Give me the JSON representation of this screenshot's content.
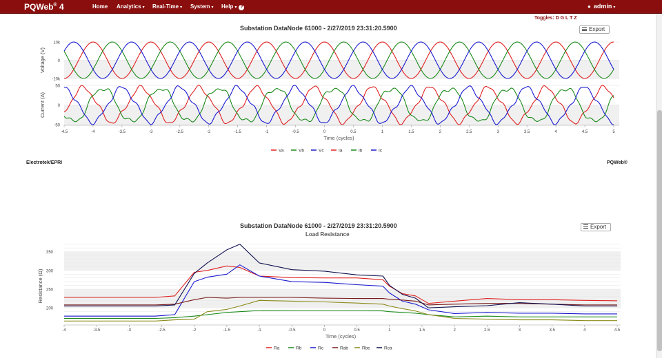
{
  "navbar": {
    "brand": "PQWeb",
    "brand_sup": "®",
    "brand_version": " 4",
    "items": [
      {
        "label": "Home"
      },
      {
        "label": "Analytics"
      },
      {
        "label": "Real-Time"
      },
      {
        "label": "System"
      },
      {
        "label": "Help"
      }
    ],
    "help_badge": "?",
    "user_icon": "person-icon",
    "user": "admin",
    "color": "#8a0e0e"
  },
  "toggles": "Toggles: D G L T Z",
  "waveform_panel": {
    "title": "Substation DataNode 61000 - 2/27/2019 23:31:20.5900",
    "export_label": "Export"
  },
  "resistance_panel": {
    "title": "Substation DataNode 61000 - 2/27/2019 23:31:20.5900",
    "subtitle": "Load Resistance",
    "export_label": "Export"
  },
  "footer": {
    "left": "Electrotek/EPRI",
    "right": "PQWeb®"
  },
  "chart_data": [
    {
      "type": "line",
      "title": "",
      "xlabel": "Time (cycles)",
      "ylabel": "Voltage (V)",
      "xlim": [
        -4.5,
        5
      ],
      "ylim": [
        -10000,
        10000
      ],
      "x_ticks": [
        "-4.5",
        "-4",
        "-3.5",
        "-3",
        "-2.5",
        "-2",
        "-1.5",
        "-1",
        "-0.5",
        "0",
        "0.5",
        "1",
        "1.5",
        "2",
        "2.5",
        "3",
        "3.5",
        "4",
        "4.5",
        "5"
      ],
      "y_ticks": [
        "10k",
        "0",
        "-10k"
      ],
      "grid": true,
      "series": [
        {
          "name": "Va",
          "color": "#e02020",
          "amplitude": 10000,
          "phase_deg": 90
        },
        {
          "name": "Vb",
          "color": "#1a8a1a",
          "amplitude": 10000,
          "phase_deg": -30
        },
        {
          "name": "Vc",
          "color": "#1a1ad0",
          "amplitude": 10000,
          "phase_deg": -150
        }
      ]
    },
    {
      "type": "line",
      "title": "",
      "xlabel": "Time (cycles)",
      "ylabel": "Current (A)",
      "xlim": [
        -4.5,
        5
      ],
      "ylim": [
        -50,
        50
      ],
      "y_ticks": [
        "50",
        "0",
        "-50"
      ],
      "grid": true,
      "series": [
        {
          "name": "Ia",
          "color": "#e02020",
          "amplitude": 40,
          "phase_deg": 150
        },
        {
          "name": "Ib",
          "color": "#1a8a1a",
          "amplitude": 40,
          "phase_deg": 30
        },
        {
          "name": "Ic",
          "color": "#1a1ad0",
          "amplitude": 40,
          "phase_deg": -90
        }
      ],
      "legend": {
        "placement": "bottom",
        "entries": [
          "Va",
          "Vb",
          "Vc",
          "Ia",
          "Ib",
          "Ic"
        ]
      }
    },
    {
      "type": "line",
      "title": "Substation DataNode 61000 - 2/27/2019 23:31:20.5900",
      "subtitle": "Load Resistance",
      "xlabel": "Time (cycles)",
      "ylabel": "Resistance (Ω)",
      "xlim": [
        -4,
        4.5
      ],
      "ylim": [
        160,
        375
      ],
      "x_ticks": [
        "-4",
        "-3.5",
        "-3",
        "-2.5",
        "-2",
        "-1.5",
        "-1",
        "-0.5",
        "0",
        "0.5",
        "1",
        "1.5",
        "2",
        "2.5",
        "3",
        "3.5",
        "4",
        "4.5"
      ],
      "y_ticks": [
        "350",
        "300",
        "250",
        "200"
      ],
      "grid": true,
      "legend": {
        "placement": "bottom"
      },
      "x": [
        -4,
        -2.6,
        -2.3,
        -2.0,
        -1.8,
        -1.5,
        -1.3,
        -1.0,
        -0.5,
        0,
        0.5,
        0.9,
        1.0,
        1.2,
        1.4,
        1.6,
        2.0,
        2.5,
        3.0,
        3.5,
        4.0,
        4.5
      ],
      "series": [
        {
          "name": "Ra",
          "color": "#e02020",
          "values": [
            228,
            228,
            232,
            295,
            300,
            312,
            308,
            285,
            281,
            280,
            280,
            275,
            258,
            238,
            232,
            212,
            218,
            225,
            222,
            222,
            220,
            219
          ]
        },
        {
          "name": "Rb",
          "color": "#1a8a1a",
          "values": [
            172,
            172,
            174,
            178,
            182,
            188,
            190,
            193,
            194,
            194,
            194,
            192,
            190,
            188,
            186,
            182,
            176,
            178,
            176,
            176,
            176,
            176
          ]
        },
        {
          "name": "Rc",
          "color": "#1a1ad0",
          "values": [
            178,
            178,
            182,
            270,
            282,
            290,
            315,
            285,
            270,
            268,
            262,
            258,
            240,
            218,
            210,
            195,
            185,
            188,
            186,
            186,
            184,
            184
          ]
        },
        {
          "name": "Rab",
          "color": "#7a1a1a",
          "values": [
            208,
            208,
            210,
            222,
            228,
            226,
            228,
            228,
            228,
            226,
            225,
            225,
            223,
            221,
            218,
            208,
            210,
            212,
            212,
            210,
            208,
            208
          ]
        },
        {
          "name": "Rbc",
          "color": "#8a8a1a",
          "values": [
            165,
            165,
            168,
            170,
            190,
            196,
            205,
            220,
            218,
            216,
            213,
            210,
            205,
            198,
            192,
            182,
            172,
            170,
            168,
            168,
            166,
            166
          ]
        },
        {
          "name": "Rca",
          "color": "#101050",
          "values": [
            205,
            205,
            208,
            292,
            320,
            355,
            370,
            320,
            302,
            298,
            288,
            285,
            260,
            236,
            226,
            200,
            203,
            206,
            214,
            210,
            205,
            205
          ]
        }
      ]
    }
  ]
}
